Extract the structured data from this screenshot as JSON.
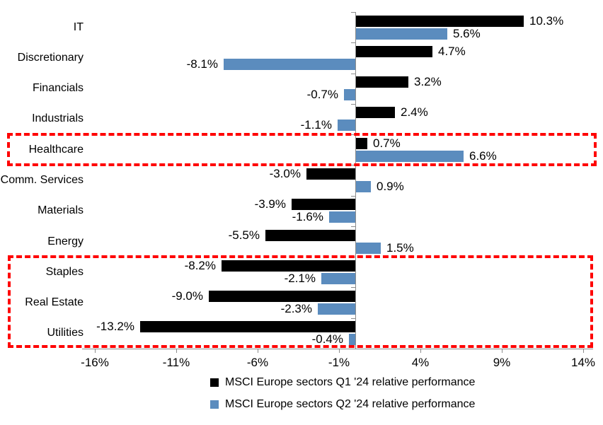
{
  "chart_data": {
    "type": "bar",
    "orientation": "horizontal",
    "title": "",
    "categories": [
      "IT",
      "Discretionary",
      "Financials",
      "Industrials",
      "Healthcare",
      "Comm. Services",
      "Materials",
      "Energy",
      "Staples",
      "Real Estate",
      "Utilities"
    ],
    "series": [
      {
        "name": "MSCI Europe sectors Q1 '24 relative performance",
        "color": "#000000",
        "values": [
          10.3,
          4.7,
          3.2,
          2.4,
          0.7,
          -3.0,
          -3.9,
          -5.5,
          -8.2,
          -9.0,
          -13.2
        ],
        "labels": [
          "10.3%",
          "4.7%",
          "3.2%",
          "2.4%",
          "0.7%",
          "-3.0%",
          "-3.9%",
          "-5.5%",
          "-8.2%",
          "-9.0%",
          "-13.2%"
        ]
      },
      {
        "name": "MSCI Europe sectors Q2 '24 relative performance",
        "color": "#5B8CBE",
        "values": [
          5.6,
          -8.1,
          -0.7,
          -1.1,
          6.6,
          0.9,
          -1.6,
          1.5,
          -2.1,
          -2.3,
          -0.4
        ],
        "labels": [
          "5.6%",
          "-8.1%",
          "-0.7%",
          "-1.1%",
          "6.6%",
          "0.9%",
          "-1.6%",
          "1.5%",
          "-2.1%",
          "-2.3%",
          "-0.4%"
        ]
      }
    ],
    "x_axis": {
      "tick_labels": [
        "-16%",
        "-11%",
        "-6%",
        "-1%",
        "4%",
        "9%",
        "14%"
      ],
      "tick_values": [
        -16,
        -11,
        -6,
        -1,
        4,
        9,
        14
      ],
      "range": [
        -16.8,
        14.6
      ]
    },
    "grid": false,
    "axis_color": "#8C8C8C",
    "legend": {
      "position": "bottom",
      "entries": [
        {
          "label": "MSCI Europe sectors Q1 '24 relative performance",
          "color": "#000000"
        },
        {
          "label": "MSCI Europe sectors Q2 '24 relative performance",
          "color": "#5B8CBE"
        }
      ]
    },
    "annotations": {
      "highlight_boxes": [
        {
          "start_category": "Healthcare",
          "end_category": "Healthcare",
          "color": "#FF0000",
          "style": "dashed"
        },
        {
          "start_category": "Staples",
          "end_category": "Utilities",
          "color": "#FF0000",
          "style": "dashed"
        }
      ]
    }
  }
}
